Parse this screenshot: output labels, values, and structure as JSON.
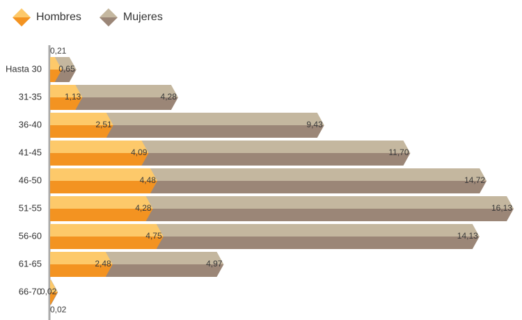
{
  "chart_data": {
    "type": "bar",
    "orientation": "horizontal",
    "stacked": true,
    "categories": [
      "Hasta 30",
      "31-35",
      "36-40",
      "41-45",
      "46-50",
      "51-55",
      "56-60",
      "61-65",
      "66-70"
    ],
    "series": [
      {
        "name": "Hombres",
        "color": "#f39321",
        "top_color": "#fdc96a",
        "values": [
          0.21,
          1.13,
          2.51,
          4.09,
          4.48,
          4.28,
          4.75,
          2.48,
          0.02
        ],
        "value_labels": [
          "0,21",
          "1,13",
          "2,51",
          "4,09",
          "4,48",
          "4,28",
          "4,75",
          "2,48",
          "0,02"
        ]
      },
      {
        "name": "Mujeres",
        "color": "#9b8677",
        "top_color": "#c4b79f",
        "values": [
          0.65,
          4.28,
          9.43,
          11.7,
          14.72,
          16.13,
          14.13,
          4.97,
          0.02
        ],
        "value_labels": [
          "0,65",
          "4,28",
          "9,43",
          "11,70",
          "14,72",
          "16,13",
          "14,13",
          "4,97",
          "0,02"
        ]
      }
    ]
  }
}
